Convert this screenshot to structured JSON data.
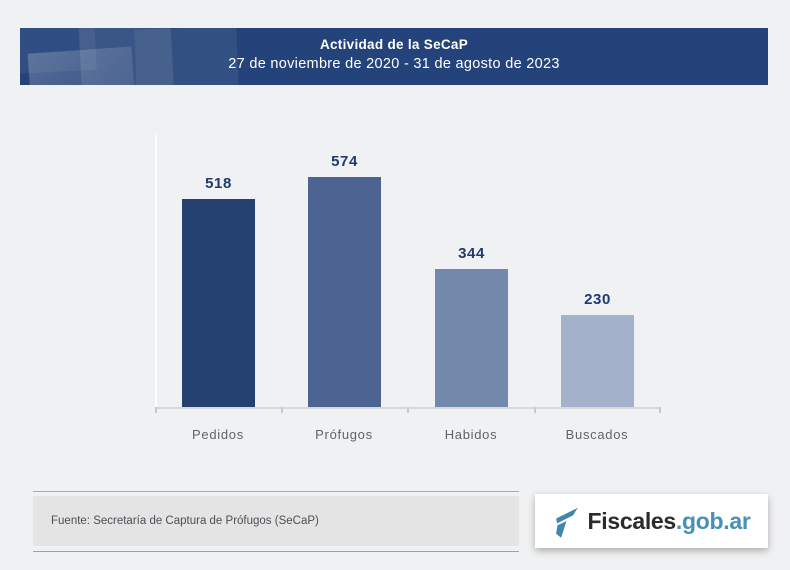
{
  "header": {
    "title": "Actividad de la SeCaP",
    "subtitle": "27 de noviembre de 2020 - 31 de agosto de 2023",
    "background": "#24437a"
  },
  "chart_data": {
    "type": "bar",
    "title": "Actividad de la SeCaP",
    "subtitle": "27 de noviembre de 2020 - 31 de agosto de 2023",
    "categories": [
      "Pedidos",
      "Prófugos",
      "Habidos",
      "Buscados"
    ],
    "values": [
      518,
      574,
      344,
      230
    ],
    "bar_colors": [
      "#24416f",
      "#4d6493",
      "#7289ac",
      "#a3b1ca"
    ],
    "xlabel": "",
    "ylabel": "",
    "ylim": [
      0,
      640
    ],
    "grid": false,
    "legend": false,
    "value_labels_shown": true,
    "value_label_color": "#1e3a6e",
    "axis_baseline_color": "#d8d8d9"
  },
  "footer": {
    "source": "Fuente: Secretaría de Captura de Prófugos (SeCaP)"
  },
  "logo": {
    "brand": "Fiscales",
    "suffix": ".gob.ar",
    "accent": "#4691b5",
    "icon": "fiscales-flag-f-icon"
  }
}
